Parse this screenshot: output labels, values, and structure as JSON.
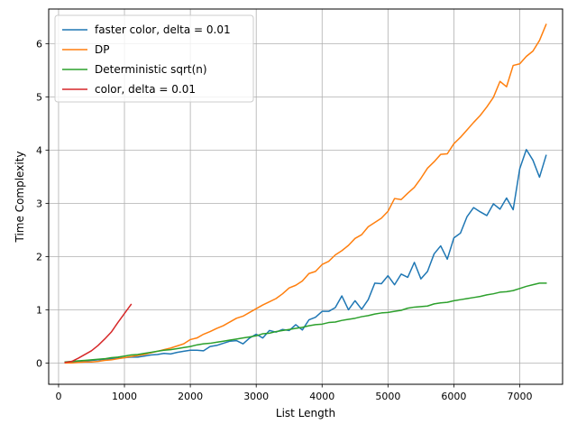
{
  "chart_data": {
    "type": "line",
    "title": "",
    "xlabel": "List Length",
    "ylabel": "Time Complexity",
    "xlim": [
      -150,
      7650
    ],
    "ylim": [
      -0.4,
      6.65
    ],
    "xticks": [
      0,
      1000,
      2000,
      3000,
      4000,
      5000,
      6000,
      7000
    ],
    "yticks": [
      0,
      1,
      2,
      3,
      4,
      5,
      6
    ],
    "grid": true,
    "legend_position": "top-left",
    "series": [
      {
        "name": "faster color, delta = 0.01",
        "color": "#1f77b4",
        "x": [
          100,
          200,
          300,
          400,
          500,
          600,
          700,
          800,
          900,
          1000,
          1100,
          1200,
          1300,
          1400,
          1500,
          1600,
          1700,
          1800,
          1900,
          2000,
          2100,
          2200,
          2300,
          2400,
          2500,
          2600,
          2700,
          2800,
          2900,
          3000,
          3100,
          3200,
          3300,
          3400,
          3500,
          3600,
          3700,
          3800,
          3900,
          4000,
          4100,
          4200,
          4300,
          4400,
          4500,
          4600,
          4700,
          4800,
          4900,
          5000,
          5100,
          5200,
          5300,
          5400,
          5500,
          5600,
          5700,
          5800,
          5900,
          6000,
          6100,
          6200,
          6300,
          6400,
          6500,
          6600,
          6700,
          6800,
          6900,
          7000,
          7100,
          7200,
          7300,
          7400
        ],
        "y": [
          0.01,
          0.02,
          0.03,
          0.04,
          0.05,
          0.06,
          0.07,
          0.08,
          0.09,
          0.1,
          0.11,
          0.11,
          0.13,
          0.15,
          0.16,
          0.18,
          0.17,
          0.2,
          0.22,
          0.24,
          0.24,
          0.23,
          0.31,
          0.33,
          0.37,
          0.41,
          0.42,
          0.36,
          0.47,
          0.54,
          0.47,
          0.61,
          0.58,
          0.63,
          0.61,
          0.72,
          0.62,
          0.81,
          0.86,
          0.97,
          0.97,
          1.04,
          1.26,
          1.0,
          1.17,
          1.01,
          1.19,
          1.5,
          1.49,
          1.64,
          1.47,
          1.67,
          1.61,
          1.89,
          1.58,
          1.72,
          2.05,
          2.2,
          1.95,
          2.35,
          2.44,
          2.75,
          2.92,
          2.84,
          2.77,
          2.99,
          2.89,
          3.1,
          2.88,
          3.65,
          4.01,
          3.81,
          3.49,
          3.9
        ]
      },
      {
        "name": "DP",
        "color": "#ff7f0e",
        "x": [
          100,
          200,
          300,
          400,
          500,
          600,
          700,
          800,
          900,
          1000,
          1100,
          1200,
          1300,
          1400,
          1500,
          1600,
          1700,
          1800,
          1900,
          2000,
          2100,
          2200,
          2300,
          2400,
          2500,
          2600,
          2700,
          2800,
          2900,
          3000,
          3100,
          3200,
          3300,
          3400,
          3500,
          3600,
          3700,
          3800,
          3900,
          4000,
          4100,
          4200,
          4300,
          4400,
          4500,
          4600,
          4700,
          4800,
          4900,
          5000,
          5100,
          5200,
          5300,
          5400,
          5500,
          5600,
          5700,
          5800,
          5900,
          6000,
          6100,
          6200,
          6300,
          6400,
          6500,
          6600,
          6700,
          6800,
          6900,
          7000,
          7100,
          7200,
          7300,
          7400
        ],
        "y": [
          0.0,
          0.0,
          0.01,
          0.02,
          0.02,
          0.03,
          0.05,
          0.06,
          0.08,
          0.1,
          0.12,
          0.14,
          0.16,
          0.19,
          0.22,
          0.25,
          0.28,
          0.32,
          0.36,
          0.44,
          0.47,
          0.54,
          0.59,
          0.65,
          0.7,
          0.77,
          0.84,
          0.88,
          0.95,
          1.02,
          1.09,
          1.15,
          1.21,
          1.3,
          1.41,
          1.46,
          1.54,
          1.68,
          1.72,
          1.85,
          1.91,
          2.03,
          2.11,
          2.21,
          2.34,
          2.41,
          2.56,
          2.64,
          2.72,
          2.85,
          3.09,
          3.07,
          3.19,
          3.3,
          3.47,
          3.66,
          3.78,
          3.92,
          3.93,
          4.12,
          4.24,
          4.38,
          4.52,
          4.65,
          4.81,
          4.99,
          5.29,
          5.19,
          5.59,
          5.62,
          5.76,
          5.86,
          6.06,
          6.36
        ]
      },
      {
        "name": "Deterministic sqrt(n)",
        "color": "#2ca02c",
        "x": [
          100,
          200,
          300,
          400,
          500,
          600,
          700,
          800,
          900,
          1000,
          1100,
          1200,
          1300,
          1400,
          1500,
          1600,
          1700,
          1800,
          1900,
          2000,
          2100,
          2200,
          2300,
          2400,
          2500,
          2600,
          2700,
          2800,
          2900,
          3000,
          3100,
          3200,
          3300,
          3400,
          3500,
          3600,
          3700,
          3800,
          3900,
          4000,
          4100,
          4200,
          4300,
          4400,
          4500,
          4600,
          4700,
          4800,
          4900,
          5000,
          5100,
          5200,
          5300,
          5400,
          5500,
          5600,
          5700,
          5800,
          5900,
          6000,
          6100,
          6200,
          6300,
          6400,
          6500,
          6600,
          6700,
          6800,
          6900,
          7000,
          7100,
          7200,
          7300,
          7400
        ],
        "y": [
          0.02,
          0.03,
          0.04,
          0.05,
          0.06,
          0.07,
          0.08,
          0.1,
          0.11,
          0.13,
          0.15,
          0.16,
          0.18,
          0.2,
          0.22,
          0.24,
          0.25,
          0.27,
          0.29,
          0.31,
          0.34,
          0.36,
          0.37,
          0.39,
          0.41,
          0.43,
          0.45,
          0.47,
          0.49,
          0.51,
          0.55,
          0.56,
          0.59,
          0.61,
          0.63,
          0.65,
          0.67,
          0.7,
          0.72,
          0.73,
          0.76,
          0.77,
          0.8,
          0.82,
          0.84,
          0.87,
          0.89,
          0.92,
          0.94,
          0.95,
          0.97,
          0.99,
          1.03,
          1.05,
          1.06,
          1.07,
          1.11,
          1.13,
          1.14,
          1.17,
          1.19,
          1.21,
          1.23,
          1.25,
          1.28,
          1.3,
          1.33,
          1.34,
          1.36,
          1.4,
          1.44,
          1.47,
          1.5,
          1.5
        ]
      },
      {
        "name": "color, delta = 0.01",
        "color": "#d62728",
        "x": [
          100,
          200,
          300,
          400,
          500,
          600,
          700,
          800,
          900,
          1000,
          1100
        ],
        "y": [
          0.01,
          0.03,
          0.09,
          0.16,
          0.23,
          0.33,
          0.45,
          0.58,
          0.76,
          0.93,
          1.1
        ]
      }
    ]
  }
}
